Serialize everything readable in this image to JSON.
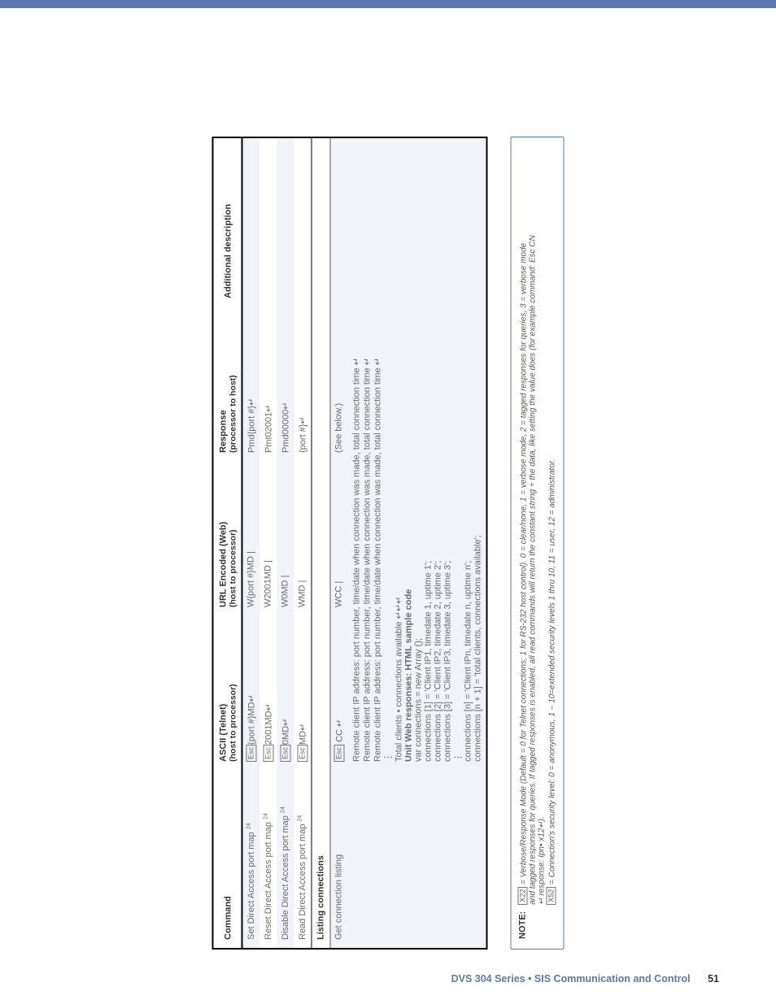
{
  "top_bar_color": "#5b7ab0",
  "table": {
    "headers": {
      "command": "Command",
      "ascii": "ASCII (Telnet)",
      "ascii_sub": "(host to processor)",
      "url": "URL Encoded (Web)",
      "url_sub": "(host to processor)",
      "response": "Response",
      "response_sub": "(processor to host)",
      "desc": "Additional description"
    },
    "rows": [
      {
        "alt": true,
        "cmd": "Set Direct Access port map",
        "sup": "24",
        "ascii_pre": "Esc",
        "ascii": "{port #}MD",
        "ascii_enter": true,
        "url": "W{port #}MD",
        "url_pipe": true,
        "resp": "Pmd{port #}",
        "resp_enter": true
      },
      {
        "alt": false,
        "cmd": "Reset Direct Access port map",
        "sup": "24",
        "ascii_pre": "Esc",
        "ascii": "2001MD",
        "ascii_enter": true,
        "url": "W2001MD",
        "url_pipe": true,
        "resp": "Pmt02001",
        "resp_enter": true
      },
      {
        "alt": true,
        "cmd": "Disable Direct Access port map",
        "sup": "24",
        "ascii_pre": "Esc",
        "ascii": "0MD",
        "ascii_enter": true,
        "url": "W0MD",
        "url_pipe": true,
        "resp": "Pmd00000",
        "resp_enter": true
      },
      {
        "alt": false,
        "cmd": "Read Direct Access port map",
        "sup": "24",
        "ascii_pre": "Esc",
        "ascii": "MD",
        "ascii_enter": true,
        "url": "WMD",
        "url_pipe": true,
        "resp": "{port #}",
        "resp_enter": true
      }
    ],
    "section_title": "Listing connections",
    "listing_row": {
      "cmd": "Get connection listing",
      "ascii_pre": "Esc",
      "ascii": "CC",
      "ascii_enter": true,
      "url": "WCC",
      "url_pipe": true,
      "resp": "(See below.)"
    },
    "listing_body": [
      "Remote client IP address: port number, time/date when connection was made, total connection time ↵",
      "Remote client IP address: port number, time/date when connection was made, total connection time ↵",
      "Remote client IP address: port number, time/date when connection was made, total connection time ↵",
      "⋮",
      "Total clients • connections available ↵↵↵",
      "Unit Web responses:  HTML sample code",
      "var connections = new Array ();",
      "connections [1] = 'Client IP1, timedate 1, uptime 1';",
      "connections [2] = 'Client IP2, timedate 2, uptime 2';",
      "connections [3] = 'Client IP3, timedate 3, uptime 3';",
      "⋮",
      "connections [n] = 'Client IPn, timedate n, uptime n';",
      "connections [n + 1] = 'total clients, connections available';"
    ]
  },
  "note": {
    "label": "NOTE:",
    "x22": "X22",
    "line1a": " = Verbose/Response Mode (Default = 0 for Telnet connections; 1 for RS-232 host control). 0 = clear/none, 1 = verbose mode, 2 = tagged responses for queries, 3 = verbose mode",
    "line1b": "and tagged responses for queries. If tagged responses is enabled, all read commands will return the constant string + the data, like setting the value does (for example command: Esc CN",
    "line1c": "↵   response: Ipn• x12↵).",
    "x52": "X52",
    "line2": " = Connection's security level:  0 = anonymous, 1 – 10=extended security levels 1 thru 10, 11 = user, 12 = administrator."
  },
  "footer": {
    "text": "DVS 304 Series • SIS Communication and Control",
    "page": "51"
  }
}
